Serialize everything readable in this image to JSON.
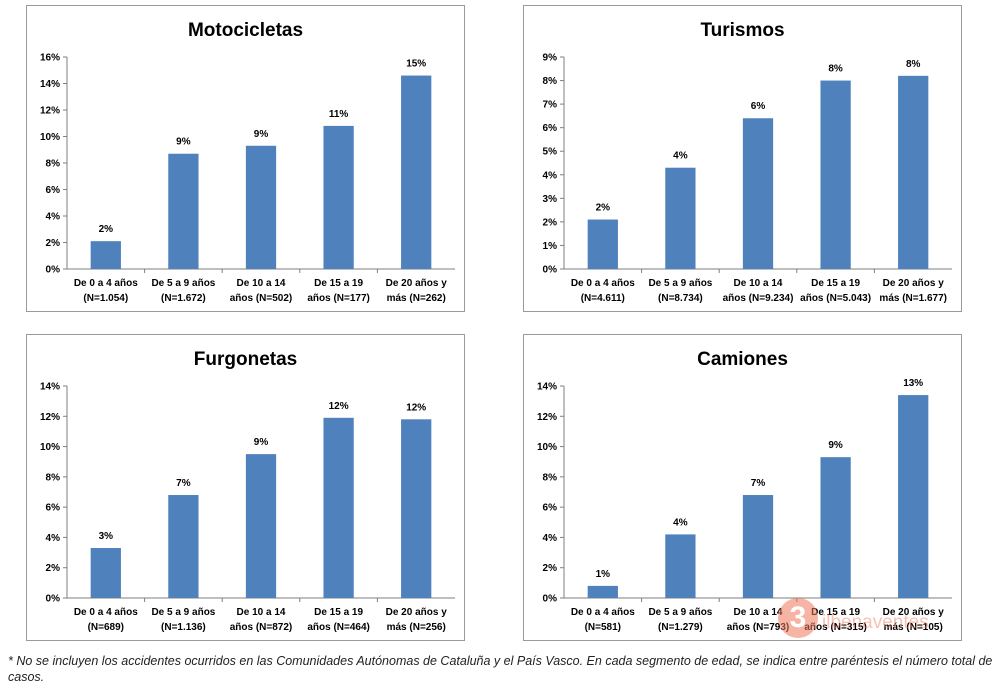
{
  "chart_data": [
    {
      "type": "bar",
      "title": "Motocicletas",
      "categories": [
        [
          "De 0 a 4 años",
          "(N=1.054)"
        ],
        [
          "De 5 a 9 años",
          "(N=1.672)"
        ],
        [
          "De 10 a 14",
          "años (N=502)"
        ],
        [
          "De 15 a 19",
          "años (N=177)"
        ],
        [
          "De 20 años y",
          "más (N=262)"
        ]
      ],
      "values": [
        2.1,
        8.7,
        9.3,
        10.8,
        14.6
      ],
      "data_labels": [
        "2%",
        "9%",
        "9%",
        "11%",
        "15%"
      ],
      "yticks": [
        "0%",
        "2%",
        "4%",
        "6%",
        "8%",
        "10%",
        "12%",
        "14%",
        "16%"
      ],
      "ylim": [
        0,
        16
      ],
      "color": "#4f81bd"
    },
    {
      "type": "bar",
      "title": "Turismos",
      "categories": [
        [
          "De 0 a 4 años",
          "(N=4.611)"
        ],
        [
          "De 5 a 9 años",
          "(N=8.734)"
        ],
        [
          "De 10 a 14",
          "años (N=9.234)"
        ],
        [
          "De 15 a 19",
          "años (N=5.043)"
        ],
        [
          "De 20 años y",
          "más (N=1.677)"
        ]
      ],
      "values": [
        2.1,
        4.3,
        6.4,
        8.0,
        8.2
      ],
      "data_labels": [
        "2%",
        "4%",
        "6%",
        "8%",
        "8%"
      ],
      "yticks": [
        "0%",
        "1%",
        "2%",
        "3%",
        "4%",
        "5%",
        "6%",
        "7%",
        "8%",
        "9%"
      ],
      "ylim": [
        0,
        9
      ],
      "color": "#4f81bd"
    },
    {
      "type": "bar",
      "title": "Furgonetas",
      "categories": [
        [
          "De 0 a 4 años",
          "(N=689)"
        ],
        [
          "De 5 a 9 años",
          "(N=1.136)"
        ],
        [
          "De 10 a 14",
          "años (N=872)"
        ],
        [
          "De 15 a 19",
          "años (N=464)"
        ],
        [
          "De 20 años y",
          "más (N=256)"
        ]
      ],
      "values": [
        3.3,
        6.8,
        9.5,
        11.9,
        11.8
      ],
      "data_labels": [
        "3%",
        "7%",
        "9%",
        "12%",
        "12%"
      ],
      "yticks": [
        "0%",
        "2%",
        "4%",
        "6%",
        "8%",
        "10%",
        "12%",
        "14%"
      ],
      "ylim": [
        0,
        14
      ],
      "color": "#4f81bd"
    },
    {
      "type": "bar",
      "title": "Camiones",
      "categories": [
        [
          "De 0 a 4 años",
          "(N=581)"
        ],
        [
          "De 5 a 9 años",
          "(N=1.279)"
        ],
        [
          "De 10 a 14",
          "años (N=793)"
        ],
        [
          "De 15 a 19",
          "años (N=315)"
        ],
        [
          "De 20 años y",
          "más (N=105)"
        ]
      ],
      "values": [
        0.8,
        4.2,
        6.8,
        9.3,
        13.4
      ],
      "data_labels": [
        "1%",
        "4%",
        "7%",
        "9%",
        "13%"
      ],
      "yticks": [
        "0%",
        "2%",
        "4%",
        "6%",
        "8%",
        "10%",
        "12%",
        "14%"
      ],
      "ylim": [
        0,
        14
      ],
      "color": "#4f81bd"
    }
  ],
  "footnote": "* No se incluyen los accidentes ocurridos en las Comunidades Autónomas de Cataluña y el País Vasco. En cada segmento de edad, se indica entre paréntesis el número total de casos.",
  "watermark": {
    "glyph": "3",
    "text": "ilbenaventes"
  }
}
